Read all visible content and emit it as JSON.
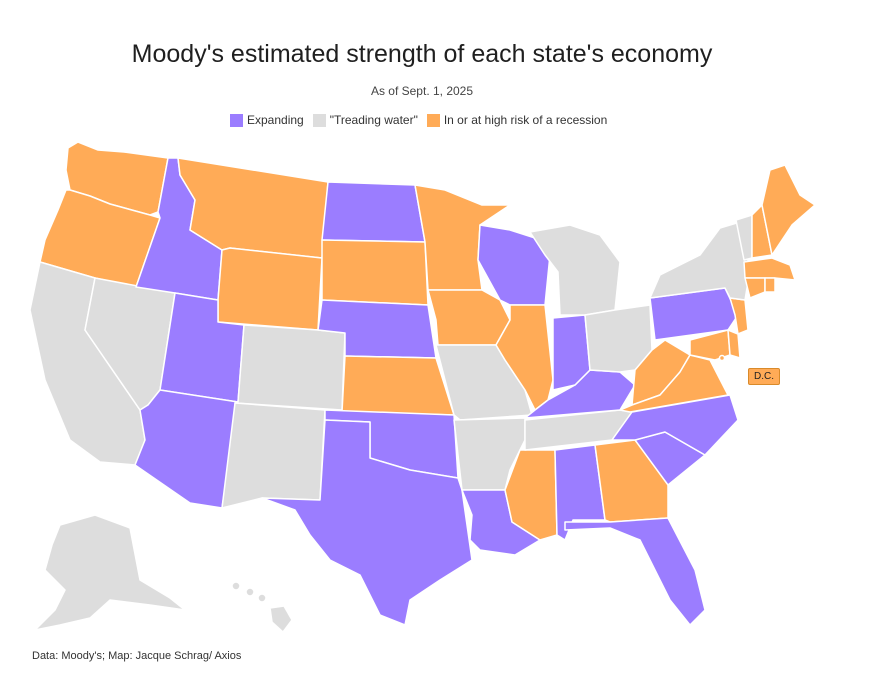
{
  "title": "Moody's estimated strength of each state's economy",
  "subtitle": "As of Sept. 1, 2025",
  "legend": {
    "expanding": "Expanding",
    "treading": "\"Treading water\"",
    "recession": "In or at high risk of a recession"
  },
  "colors": {
    "expanding": "#9b7dff",
    "treading": "#dddddd",
    "recession": "#ffab57",
    "border": "#ffffff"
  },
  "dc_label": "D.C.",
  "source": "Data: Moody's; Map: Jacque Schrag/ Axios",
  "states": {
    "WA": "recession",
    "OR": "recession",
    "CA": "treading",
    "NV": "treading",
    "ID": "expanding",
    "MT": "recession",
    "WY": "recession",
    "UT": "expanding",
    "AZ": "expanding",
    "CO": "treading",
    "NM": "treading",
    "ND": "expanding",
    "SD": "recession",
    "NE": "expanding",
    "KS": "recession",
    "OK": "expanding",
    "TX": "expanding",
    "MN": "recession",
    "IA": "recession",
    "MO": "treading",
    "AR": "treading",
    "LA": "expanding",
    "WI": "expanding",
    "IL": "recession",
    "MS": "recession",
    "MI": "treading",
    "IN": "expanding",
    "KY": "expanding",
    "TN": "treading",
    "AL": "expanding",
    "OH": "treading",
    "WV": "recession",
    "VA": "recession",
    "NC": "expanding",
    "SC": "expanding",
    "GA": "recession",
    "FL": "expanding",
    "PA": "expanding",
    "NY": "treading",
    "NJ": "recession",
    "DE": "recession",
    "MD": "recession",
    "VT": "treading",
    "NH": "recession",
    "ME": "recession",
    "MA": "recession",
    "CT": "recession",
    "RI": "recession",
    "AK": "treading",
    "HI": "treading",
    "DC": "recession"
  }
}
